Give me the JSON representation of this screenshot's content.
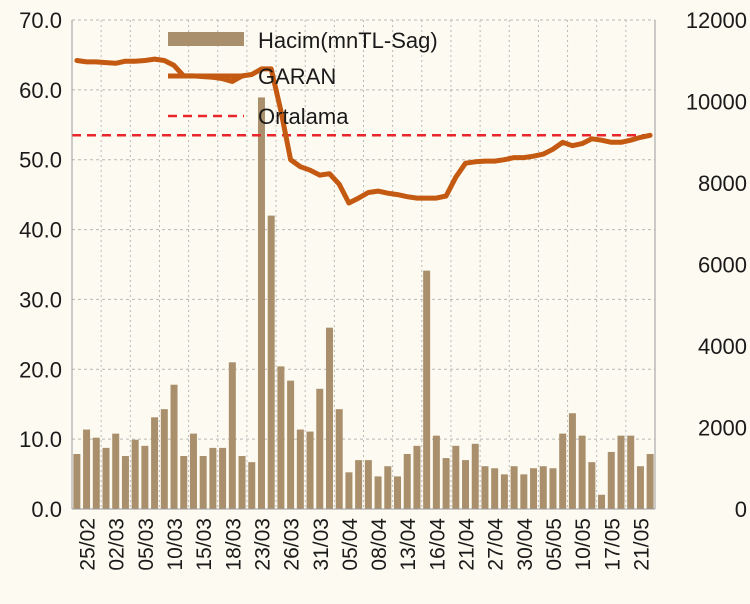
{
  "chart_data": {
    "type": "bar+line",
    "colors": {
      "background": "#fdfbf1",
      "bar": "#a98f6c",
      "line": "#c45911",
      "average": "#e8262b",
      "grid": "#b8b8b8",
      "text": "#1a1a1a"
    },
    "legend": {
      "placement": "top-center",
      "entries": [
        {
          "label": "Hacim(mnTL-Sag)",
          "kind": "bar"
        },
        {
          "label": "GARAN",
          "kind": "line"
        },
        {
          "label": "Ortalama",
          "kind": "dashed-line"
        }
      ]
    },
    "y_left": {
      "min": 0,
      "max": 70,
      "ticks": [
        "0.0",
        "10.0",
        "20.0",
        "30.0",
        "40.0",
        "50.0",
        "60.0",
        "70.0"
      ]
    },
    "y_right": {
      "min": 0,
      "max": 12000,
      "ticks": [
        "0",
        "2000",
        "4000",
        "6000",
        "8000",
        "10000",
        "12000"
      ]
    },
    "x_tick_labels": [
      "25/02",
      "02/03",
      "05/03",
      "10/03",
      "15/03",
      "18/03",
      "23/03",
      "26/03",
      "31/03",
      "05/04",
      "08/04",
      "13/04",
      "16/04",
      "21/04",
      "27/04",
      "30/04",
      "05/05",
      "10/05",
      "17/05",
      "21/05"
    ],
    "volume": [
      1350,
      1950,
      1750,
      1500,
      1850,
      1300,
      1700,
      1550,
      2250,
      2450,
      3050,
      1300,
      1850,
      1300,
      1500,
      1500,
      3600,
      1300,
      1150,
      10100,
      7200,
      3500,
      3150,
      1950,
      1900,
      2950,
      4450,
      2450,
      900,
      1200,
      1200,
      800,
      1050,
      800,
      1350,
      1550,
      5850,
      1800,
      1250,
      1550,
      1200,
      1600,
      1050,
      1000,
      850,
      1050,
      850,
      1000,
      1050,
      1000,
      1850,
      2350,
      1800,
      1150,
      350,
      1400,
      1800,
      1800,
      1050,
      1350
    ],
    "price": [
      64.2,
      64.0,
      64.0,
      63.9,
      63.8,
      64.1,
      64.1,
      64.2,
      64.4,
      64.2,
      63.5,
      62.0,
      62.0,
      61.9,
      61.8,
      61.6,
      61.2,
      62.0,
      62.2,
      63.0,
      63.0,
      57.0,
      50.0,
      49.0,
      48.5,
      47.8,
      48.0,
      46.5,
      43.8,
      44.5,
      45.3,
      45.5,
      45.2,
      45.0,
      44.7,
      44.5,
      44.5,
      44.5,
      44.8,
      47.5,
      49.5,
      49.7,
      49.8,
      49.8,
      50.0,
      50.3,
      50.3,
      50.5,
      50.8,
      51.5,
      52.5,
      52.0,
      52.3,
      53.0,
      52.8,
      52.5,
      52.5,
      52.8,
      53.2,
      53.5
    ],
    "average": 53.5
  }
}
